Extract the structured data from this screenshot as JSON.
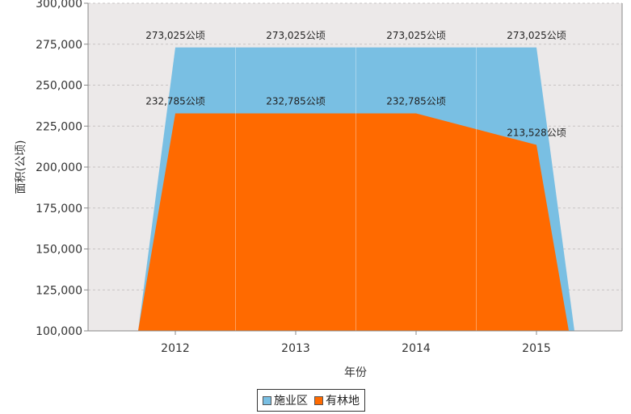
{
  "chart_data": {
    "type": "area",
    "xlabel": "年份",
    "ylabel": "面积(公顷)",
    "categories": [
      "2012",
      "2013",
      "2014",
      "2015"
    ],
    "ylim": [
      100000,
      300000
    ],
    "yticks": [
      100000,
      125000,
      150000,
      175000,
      200000,
      225000,
      250000,
      275000,
      300000
    ],
    "ytick_labels": [
      "100,000",
      "125,000",
      "150,000",
      "175,000",
      "200,000",
      "225,000",
      "250,000",
      "275,000",
      "300,000"
    ],
    "grid": true,
    "legend_position": "bottom-center",
    "value_suffix": "公顷",
    "series": [
      {
        "name": "施业区",
        "color": "#79bfe3",
        "values": [
          273025,
          273025,
          273025,
          273025
        ],
        "value_labels": [
          "273,025公顷",
          "273,025公顷",
          "273,025公顷",
          "273,025公顷"
        ]
      },
      {
        "name": "有林地",
        "color": "#ff6a00",
        "values": [
          232785,
          232785,
          232785,
          213528
        ],
        "value_labels": [
          "232,785公顷",
          "232,785公顷",
          "232,785公顷",
          "213,528公顷"
        ]
      }
    ]
  },
  "legend": {
    "items": [
      {
        "label": "施业区",
        "color": "#79bfe3"
      },
      {
        "label": "有林地",
        "color": "#ff6a00"
      }
    ]
  }
}
